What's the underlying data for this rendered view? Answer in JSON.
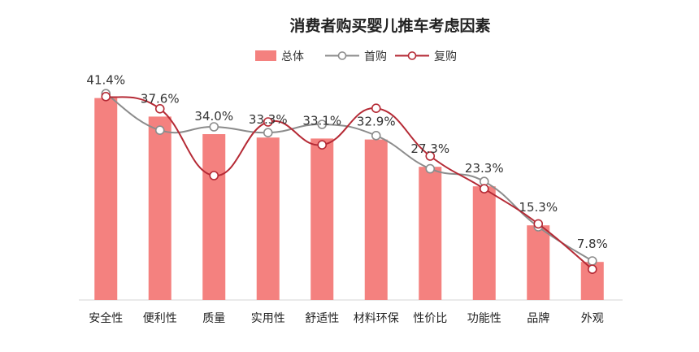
{
  "chart_data": {
    "type": "bar+line",
    "title": "消费者购买婴儿推车考虑因素",
    "categories": [
      "安全性",
      "便利性",
      "质量",
      "实用性",
      "舒适性",
      "材料环保",
      "性价比",
      "功能性",
      "品牌",
      "外观"
    ],
    "series": [
      {
        "name": "总体",
        "kind": "bar",
        "color": "#F4817F",
        "values": [
          41.4,
          37.6,
          34.0,
          33.3,
          33.1,
          32.9,
          27.3,
          23.3,
          15.3,
          7.8
        ],
        "labels": [
          "41.4%",
          "37.6%",
          "34.0%",
          "33.3%",
          "33.1%",
          "32.9%",
          "27.3%",
          "23.3%",
          "15.3%",
          "7.8%"
        ]
      },
      {
        "name": "首购",
        "kind": "line",
        "color": "#8C8C8C",
        "values": [
          42.3,
          34.8,
          35.5,
          34.3,
          36.0,
          33.7,
          26.9,
          24.3,
          15.0,
          8.0
        ]
      },
      {
        "name": "复购",
        "kind": "line",
        "color": "#B52A35",
        "values": [
          41.7,
          39.2,
          25.5,
          36.5,
          31.8,
          39.3,
          29.5,
          22.8,
          15.6,
          6.3
        ]
      }
    ],
    "ylim": [
      0,
      50
    ],
    "grid": false,
    "legend_position": "top-center"
  }
}
